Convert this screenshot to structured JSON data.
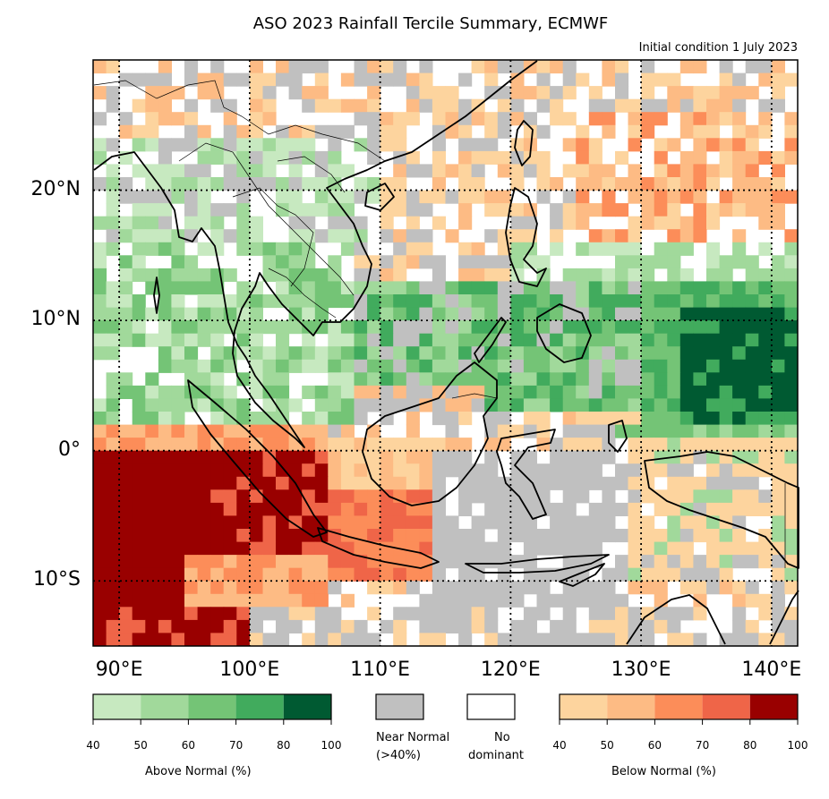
{
  "title": "ASO 2023 Rainfall Tercile Summary, ECMWF",
  "subtitle": "Initial condition 1 July 2023",
  "axes": {
    "lat_labels": [
      {
        "label": "20°N",
        "value": 20
      },
      {
        "label": "10°N",
        "value": 10
      },
      {
        "label": "0°",
        "value": 0
      },
      {
        "label": "10°S",
        "value": -10
      }
    ],
    "lon_labels": [
      {
        "label": "90°E",
        "value": 90
      },
      {
        "label": "100°E",
        "value": 100
      },
      {
        "label": "110°E",
        "value": 110
      },
      {
        "label": "120°E",
        "value": 120
      },
      {
        "label": "130°E",
        "value": 130
      },
      {
        "label": "140°E",
        "value": 140
      }
    ],
    "lon_range": [
      88,
      142
    ],
    "lat_range": [
      -15,
      30
    ]
  },
  "legend": {
    "above_normal": {
      "label": "Above Normal (%)",
      "ticks": [
        "40",
        "50",
        "60",
        "70",
        "80",
        "100"
      ],
      "colors": [
        "#c7e9c0",
        "#a1d99b",
        "#74c476",
        "#41ab5d",
        "#005a32"
      ]
    },
    "near_normal": {
      "label_line1": "Near Normal",
      "label_line2": "(>40%)",
      "color": "#c0c0c0"
    },
    "no_dominant": {
      "label_line1": "No",
      "label_line2": "dominant",
      "color": "#ffffff"
    },
    "below_normal": {
      "label": "Below Normal (%)",
      "ticks": [
        "40",
        "50",
        "60",
        "70",
        "80",
        "100"
      ],
      "colors": [
        "#fdd49e",
        "#fdbb84",
        "#fc8d59",
        "#ef6548",
        "#990000"
      ]
    }
  }
}
